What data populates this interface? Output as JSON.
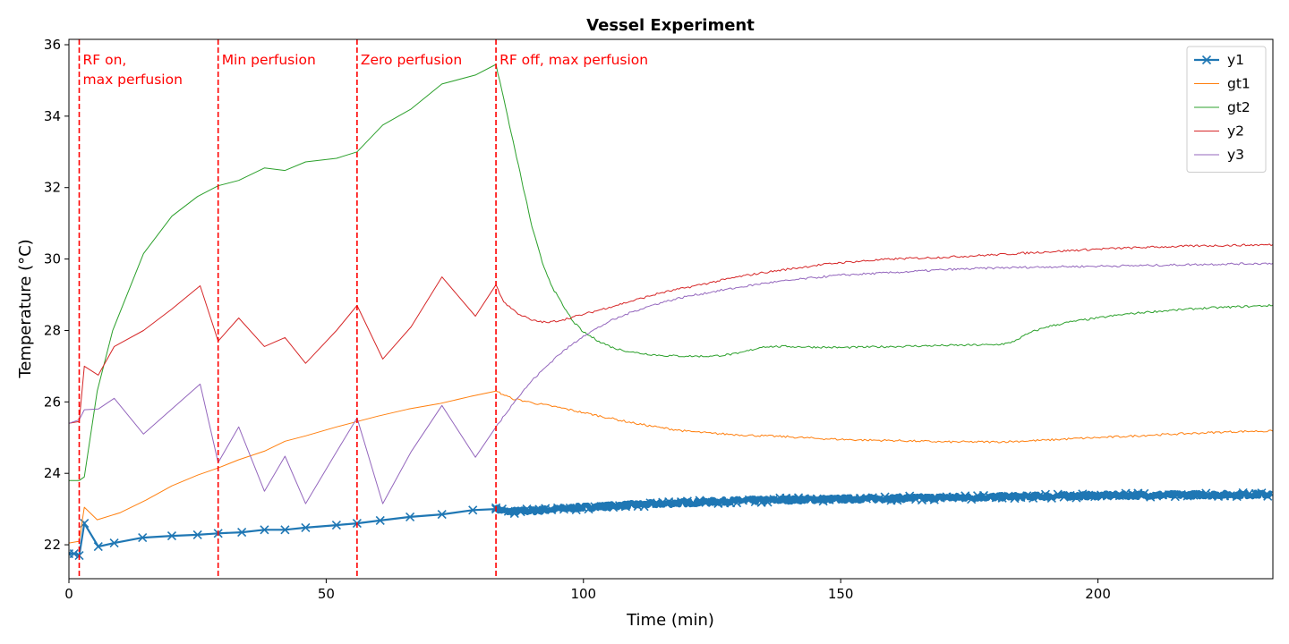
{
  "chart_data": {
    "type": "line",
    "title": "Vessel Experiment",
    "xlabel": "Time (min)",
    "ylabel": "Temperature (°C)",
    "xlim": [
      0,
      234
    ],
    "ylim": [
      21.05,
      36.15
    ],
    "xticks": [
      0,
      50,
      100,
      150,
      200
    ],
    "yticks": [
      22,
      24,
      26,
      28,
      30,
      32,
      34,
      36
    ],
    "grid": false,
    "legend_position": "top-right",
    "series": [
      {
        "name": "y1",
        "color": "#1f77b4",
        "marker": "x",
        "dense_from": 83,
        "points": [
          [
            0,
            21.75
          ],
          [
            1,
            21.75
          ],
          [
            2,
            21.7
          ],
          [
            3,
            22.6
          ],
          [
            5.7,
            21.95
          ],
          [
            8.8,
            22.05
          ],
          [
            14.3,
            22.2
          ],
          [
            20,
            22.25
          ],
          [
            25,
            22.28
          ],
          [
            29,
            22.32
          ],
          [
            33.6,
            22.35
          ],
          [
            38,
            22.42
          ],
          [
            42,
            22.42
          ],
          [
            46,
            22.48
          ],
          [
            52,
            22.55
          ],
          [
            56,
            22.6
          ],
          [
            60.5,
            22.68
          ],
          [
            66.3,
            22.78
          ],
          [
            72.5,
            22.85
          ],
          [
            78.5,
            22.97
          ],
          [
            83,
            23.0
          ],
          [
            85,
            22.93
          ],
          [
            90,
            22.95
          ],
          [
            95,
            23.0
          ],
          [
            100,
            23.05
          ],
          [
            110,
            23.12
          ],
          [
            120,
            23.18
          ],
          [
            130,
            23.23
          ],
          [
            140,
            23.26
          ],
          [
            150,
            23.28
          ],
          [
            160,
            23.3
          ],
          [
            170,
            23.32
          ],
          [
            180,
            23.34
          ],
          [
            190,
            23.36
          ],
          [
            200,
            23.38
          ],
          [
            210,
            23.39
          ],
          [
            220,
            23.4
          ],
          [
            234,
            23.41
          ]
        ]
      },
      {
        "name": "gt1",
        "color": "#ff7f0e",
        "points": [
          [
            0,
            22.05
          ],
          [
            2,
            22.1
          ],
          [
            3,
            23.05
          ],
          [
            5.5,
            22.7
          ],
          [
            10,
            22.9
          ],
          [
            15,
            23.25
          ],
          [
            20,
            23.65
          ],
          [
            25,
            23.95
          ],
          [
            29,
            24.15
          ],
          [
            33,
            24.38
          ],
          [
            38,
            24.62
          ],
          [
            42,
            24.9
          ],
          [
            46,
            25.05
          ],
          [
            52,
            25.3
          ],
          [
            56,
            25.45
          ],
          [
            60,
            25.6
          ],
          [
            66,
            25.8
          ],
          [
            72,
            25.95
          ],
          [
            78,
            26.15
          ],
          [
            83,
            26.3
          ],
          [
            86,
            26.1
          ],
          [
            90,
            25.98
          ],
          [
            95,
            25.85
          ],
          [
            100,
            25.7
          ],
          [
            105,
            25.55
          ],
          [
            110,
            25.4
          ],
          [
            115,
            25.28
          ],
          [
            120,
            25.18
          ],
          [
            125,
            25.12
          ],
          [
            130,
            25.08
          ],
          [
            135,
            25.05
          ],
          [
            140,
            25.02
          ],
          [
            145,
            24.98
          ],
          [
            150,
            24.95
          ],
          [
            155,
            24.93
          ],
          [
            160,
            24.92
          ],
          [
            165,
            24.9
          ],
          [
            170,
            24.88
          ],
          [
            175,
            24.88
          ],
          [
            180,
            24.88
          ],
          [
            185,
            24.9
          ],
          [
            190,
            24.93
          ],
          [
            195,
            24.97
          ],
          [
            200,
            25.0
          ],
          [
            205,
            25.03
          ],
          [
            210,
            25.07
          ],
          [
            215,
            25.1
          ],
          [
            220,
            25.13
          ],
          [
            225,
            25.16
          ],
          [
            230,
            25.18
          ],
          [
            234,
            25.18
          ]
        ]
      },
      {
        "name": "gt2",
        "color": "#2ca02c",
        "points": [
          [
            0,
            23.8
          ],
          [
            2,
            23.8
          ],
          [
            3,
            23.9
          ],
          [
            5.5,
            26.3
          ],
          [
            8.5,
            28.0
          ],
          [
            14.5,
            30.15
          ],
          [
            20,
            31.2
          ],
          [
            25,
            31.75
          ],
          [
            29,
            32.05
          ],
          [
            33,
            32.2
          ],
          [
            38,
            32.55
          ],
          [
            42,
            32.48
          ],
          [
            46,
            32.72
          ],
          [
            52,
            32.82
          ],
          [
            56,
            33.0
          ],
          [
            61,
            33.75
          ],
          [
            66.5,
            34.2
          ],
          [
            72.5,
            34.9
          ],
          [
            79,
            35.15
          ],
          [
            83,
            35.45
          ],
          [
            84.5,
            34.5
          ],
          [
            86,
            33.5
          ],
          [
            88,
            32.2
          ],
          [
            90,
            30.9
          ],
          [
            92,
            29.9
          ],
          [
            94,
            29.2
          ],
          [
            96,
            28.7
          ],
          [
            98,
            28.25
          ],
          [
            100,
            27.95
          ],
          [
            103,
            27.7
          ],
          [
            106,
            27.5
          ],
          [
            110,
            27.38
          ],
          [
            115,
            27.3
          ],
          [
            120,
            27.28
          ],
          [
            125,
            27.28
          ],
          [
            130,
            27.35
          ],
          [
            135,
            27.55
          ],
          [
            140,
            27.55
          ],
          [
            150,
            27.52
          ],
          [
            160,
            27.55
          ],
          [
            170,
            27.58
          ],
          [
            180,
            27.6
          ],
          [
            183,
            27.65
          ],
          [
            187,
            27.95
          ],
          [
            190,
            28.1
          ],
          [
            195,
            28.25
          ],
          [
            200,
            28.35
          ],
          [
            205,
            28.45
          ],
          [
            210,
            28.52
          ],
          [
            215,
            28.57
          ],
          [
            220,
            28.62
          ],
          [
            225,
            28.65
          ],
          [
            230,
            28.68
          ],
          [
            234,
            28.7
          ]
        ]
      },
      {
        "name": "y2",
        "color": "#d62728",
        "points": [
          [
            0,
            25.4
          ],
          [
            2,
            25.45
          ],
          [
            3,
            27.0
          ],
          [
            5.7,
            26.75
          ],
          [
            8.8,
            27.55
          ],
          [
            14.5,
            28.0
          ],
          [
            20,
            28.6
          ],
          [
            25.5,
            29.25
          ],
          [
            29,
            27.7
          ],
          [
            33,
            28.35
          ],
          [
            38,
            27.55
          ],
          [
            42,
            27.8
          ],
          [
            46,
            27.08
          ],
          [
            52,
            28.0
          ],
          [
            56,
            28.7
          ],
          [
            61,
            27.2
          ],
          [
            66.5,
            28.1
          ],
          [
            72.5,
            29.5
          ],
          [
            79,
            28.4
          ],
          [
            83,
            29.28
          ],
          [
            84.5,
            28.8
          ],
          [
            87,
            28.5
          ],
          [
            90,
            28.28
          ],
          [
            93,
            28.22
          ],
          [
            96,
            28.3
          ],
          [
            100,
            28.45
          ],
          [
            105,
            28.65
          ],
          [
            110,
            28.85
          ],
          [
            115,
            29.05
          ],
          [
            120,
            29.2
          ],
          [
            125,
            29.35
          ],
          [
            130,
            29.5
          ],
          [
            135,
            29.62
          ],
          [
            140,
            29.72
          ],
          [
            145,
            29.82
          ],
          [
            150,
            29.9
          ],
          [
            160,
            30.0
          ],
          [
            170,
            30.05
          ],
          [
            180,
            30.12
          ],
          [
            190,
            30.2
          ],
          [
            200,
            30.28
          ],
          [
            210,
            30.33
          ],
          [
            220,
            30.37
          ],
          [
            234,
            30.4
          ]
        ]
      },
      {
        "name": "y3",
        "color": "#9467bd",
        "points": [
          [
            0,
            25.4
          ],
          [
            2,
            25.5
          ],
          [
            3,
            25.78
          ],
          [
            5.7,
            25.8
          ],
          [
            8.8,
            26.1
          ],
          [
            14.5,
            25.1
          ],
          [
            20,
            25.8
          ],
          [
            25.5,
            26.5
          ],
          [
            29,
            24.3
          ],
          [
            33,
            25.3
          ],
          [
            38,
            23.5
          ],
          [
            42,
            24.48
          ],
          [
            46,
            23.15
          ],
          [
            52,
            24.6
          ],
          [
            56,
            25.55
          ],
          [
            61,
            23.15
          ],
          [
            66.5,
            24.6
          ],
          [
            72.5,
            25.9
          ],
          [
            79,
            24.45
          ],
          [
            83,
            25.3
          ],
          [
            86,
            25.9
          ],
          [
            90,
            26.6
          ],
          [
            95,
            27.3
          ],
          [
            100,
            27.85
          ],
          [
            105,
            28.25
          ],
          [
            110,
            28.55
          ],
          [
            115,
            28.78
          ],
          [
            120,
            28.95
          ],
          [
            125,
            29.08
          ],
          [
            130,
            29.2
          ],
          [
            135,
            29.32
          ],
          [
            140,
            29.4
          ],
          [
            145,
            29.48
          ],
          [
            150,
            29.55
          ],
          [
            160,
            29.62
          ],
          [
            170,
            29.7
          ],
          [
            180,
            29.75
          ],
          [
            190,
            29.78
          ],
          [
            200,
            29.8
          ],
          [
            210,
            29.82
          ],
          [
            220,
            29.85
          ],
          [
            234,
            29.88
          ]
        ]
      }
    ],
    "vlines": [
      2,
      29,
      56,
      83
    ],
    "annotations": [
      {
        "x": 2,
        "lines": [
          "RF on,",
          "max perfusion"
        ]
      },
      {
        "x": 29,
        "lines": [
          "Min perfusion"
        ]
      },
      {
        "x": 56,
        "lines": [
          "Zero perfusion"
        ]
      },
      {
        "x": 83,
        "lines": [
          "RF off, max perfusion"
        ]
      }
    ]
  }
}
